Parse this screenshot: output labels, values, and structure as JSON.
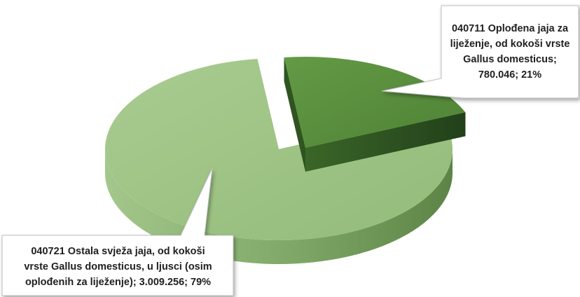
{
  "chart_data": {
    "type": "pie",
    "style": "3d-exploded",
    "colors": {
      "small_top": "#5a8e3e",
      "small_side": "#2f5420",
      "large_top": "#9dc383",
      "large_side": "#6f9a55",
      "callout_fill": "#ffffff",
      "callout_stroke": "#bfbfbf"
    },
    "slices": [
      {
        "label": "040711 Oplođena jaja za\nliježenje, od kokoši vrste\nGallus domesticus;\n780.046; 21%",
        "value": 780046,
        "percent": 21
      },
      {
        "label": "040721 Ostala svježa jaja, od kokoši\nvrste Gallus domesticus, u ljusci (osim\noplođenih za liježenje); 3.009.256; 79%",
        "value": 3009256,
        "percent": 79
      }
    ]
  }
}
